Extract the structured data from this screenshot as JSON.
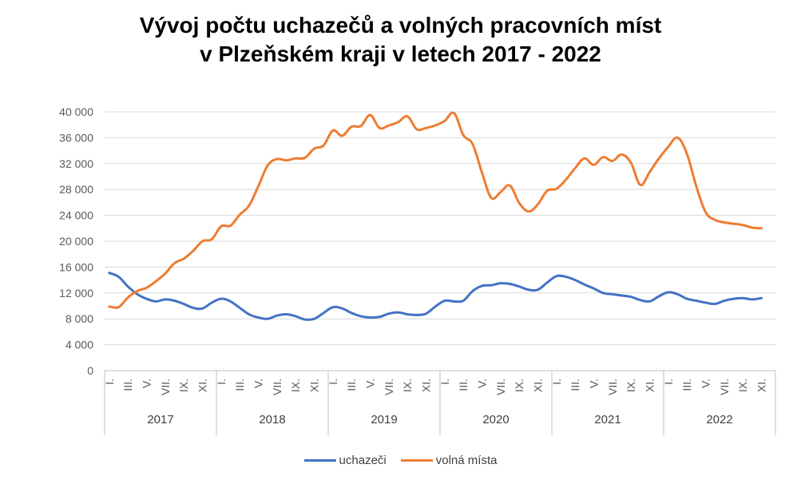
{
  "title_line1": "Vývoj počtu uchazečů a volných pracovních míst",
  "title_line2": "v Plzeňském kraji v letech 2017 - 2022",
  "chart_data": {
    "type": "line",
    "ylim": [
      0,
      40000
    ],
    "y_ticks": [
      0,
      4000,
      8000,
      12000,
      16000,
      20000,
      24000,
      28000,
      32000,
      36000,
      40000
    ],
    "y_tick_labels": [
      "0",
      "4 000",
      "8 000",
      "12 000",
      "16 000",
      "20 000",
      "24 000",
      "28 000",
      "32 000",
      "36 000",
      "40 000"
    ],
    "month_tick_labels": [
      "I.",
      "III.",
      "V.",
      "VII.",
      "IX.",
      "XI."
    ],
    "years": [
      "2017",
      "2018",
      "2019",
      "2020",
      "2021",
      "2022"
    ],
    "grid": true,
    "legend_position": "bottom",
    "series": [
      {
        "name": "uchazeči",
        "color": "#4472C4",
        "values": [
          15100,
          14500,
          13000,
          11800,
          11100,
          10700,
          11000,
          10800,
          10300,
          9700,
          9600,
          10500,
          11100,
          10700,
          9700,
          8700,
          8200,
          8000,
          8500,
          8700,
          8400,
          7900,
          8000,
          8900,
          9800,
          9600,
          8900,
          8400,
          8200,
          8300,
          8800,
          9000,
          8700,
          8600,
          8800,
          9900,
          10800,
          10700,
          10800,
          12300,
          13100,
          13200,
          13500,
          13400,
          13000,
          12500,
          12500,
          13600,
          14600,
          14500,
          14000,
          13300,
          12700,
          12000,
          11800,
          11600,
          11400,
          10900,
          10700,
          11500,
          12100,
          11800,
          11100,
          10800,
          10500,
          10300,
          10800,
          11100,
          11200,
          11000,
          11200
        ]
      },
      {
        "name": "volná místa",
        "color": "#ED7D31",
        "values": [
          9900,
          9800,
          11300,
          12300,
          12800,
          13800,
          15000,
          16600,
          17300,
          18500,
          20000,
          20300,
          22300,
          22400,
          24100,
          25500,
          28500,
          31700,
          32700,
          32500,
          32800,
          32900,
          34300,
          34800,
          37100,
          36300,
          37700,
          37800,
          39500,
          37500,
          37900,
          38400,
          39300,
          37300,
          37500,
          37900,
          38600,
          39800,
          36400,
          35000,
          30600,
          26700,
          27600,
          28600,
          25900,
          24600,
          25700,
          27800,
          28100,
          29500,
          31300,
          32800,
          31800,
          33000,
          32400,
          33400,
          32100,
          28700,
          30700,
          32800,
          34600,
          36000,
          33500,
          28500,
          24500,
          23300,
          22900,
          22700,
          22500,
          22100,
          22000
        ]
      }
    ]
  }
}
